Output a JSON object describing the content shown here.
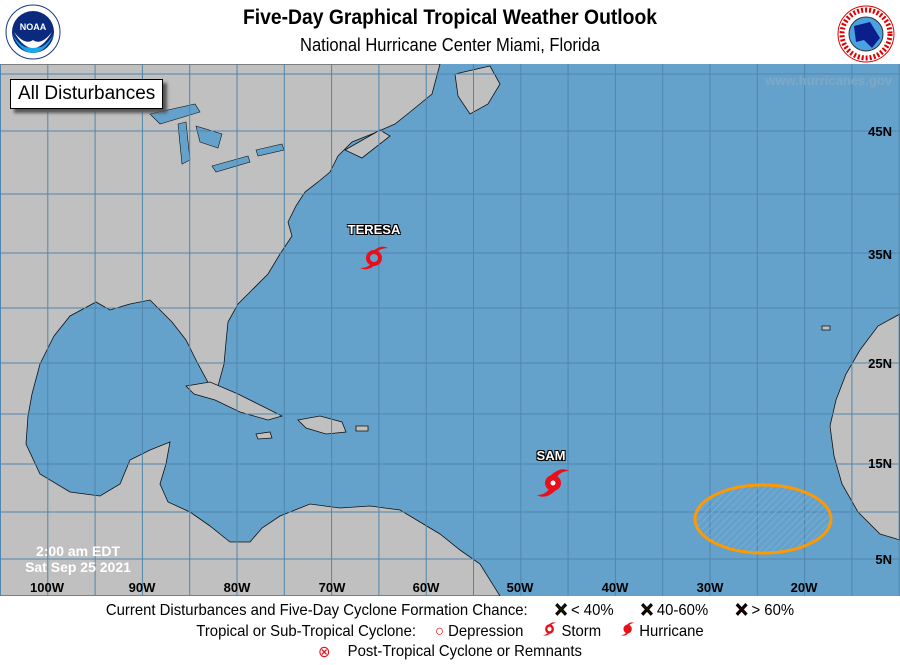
{
  "header": {
    "title": "Five-Day Graphical Tropical Weather Outlook",
    "subtitle": "National Hurricane Center  Miami, Florida",
    "left_logo": "NOAA",
    "right_logo": "National Weather Service"
  },
  "map": {
    "view_label": "All Disturbances",
    "website": "www.hurricanes.gov",
    "time": "2:00 am EDT",
    "date": "Sat Sep 25 2021",
    "longitude_labels": [
      "100W",
      "90W",
      "80W",
      "70W",
      "60W",
      "50W",
      "40W",
      "30W",
      "20W"
    ],
    "latitude_labels": [
      "45N",
      "35N",
      "25N",
      "15N",
      "5N"
    ],
    "colors": {
      "ocean": "#64a2cc",
      "land": "#c0c0c0",
      "storm": "#e8101a",
      "area_low": "#ff9900"
    },
    "systems": [
      {
        "name": "TERESA",
        "type": "storm",
        "icon": "tropical-storm-icon"
      },
      {
        "name": "SAM",
        "type": "hurricane",
        "icon": "hurricane-icon"
      }
    ],
    "disturbances": [
      {
        "chance_category": "40-60%",
        "color": "#ff9900"
      }
    ]
  },
  "legend": {
    "row1_label": "Current Disturbances and Five-Day Cyclone Formation Chance:",
    "low": "< 40%",
    "medium": "40-60%",
    "high": "> 60%",
    "low_color": "#ffff00",
    "medium_color": "#ff9900",
    "high_color": "#ff0000",
    "row2_label": "Tropical or Sub-Tropical Cyclone:",
    "depression": "Depression",
    "storm": "Storm",
    "hurricane": "Hurricane",
    "row3_label": "Post-Tropical Cyclone or Remnants"
  }
}
